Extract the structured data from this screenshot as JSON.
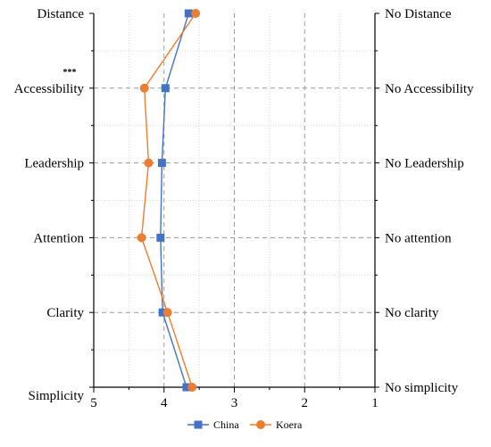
{
  "chart_data": {
    "type": "line",
    "orientation": "vertical-profile",
    "categories_left": [
      "Distance",
      "Accessibility",
      "Leadership",
      "Attention",
      "Clarity",
      "Simplicity"
    ],
    "categories_right": [
      "No Distance",
      "No Accessibility",
      "No Leadership",
      "No attention",
      "No clarity",
      "No simplicity"
    ],
    "x_ticks": [
      "5",
      "4",
      "3",
      "2",
      "1"
    ],
    "xlim": [
      5,
      1
    ],
    "x_reversed": true,
    "significance_marks": [
      {
        "category": "Accessibility",
        "mark": "***"
      }
    ],
    "series": [
      {
        "name": "China",
        "color": "#4472C4",
        "marker": "square",
        "values": [
          3.65,
          3.98,
          4.03,
          4.05,
          4.02,
          3.68
        ]
      },
      {
        "name": "Koera",
        "color": "#ED7D31",
        "marker": "circle",
        "values": [
          3.55,
          4.28,
          4.22,
          4.32,
          3.95,
          3.6
        ]
      }
    ],
    "grid": true,
    "legend_position": "bottom"
  }
}
